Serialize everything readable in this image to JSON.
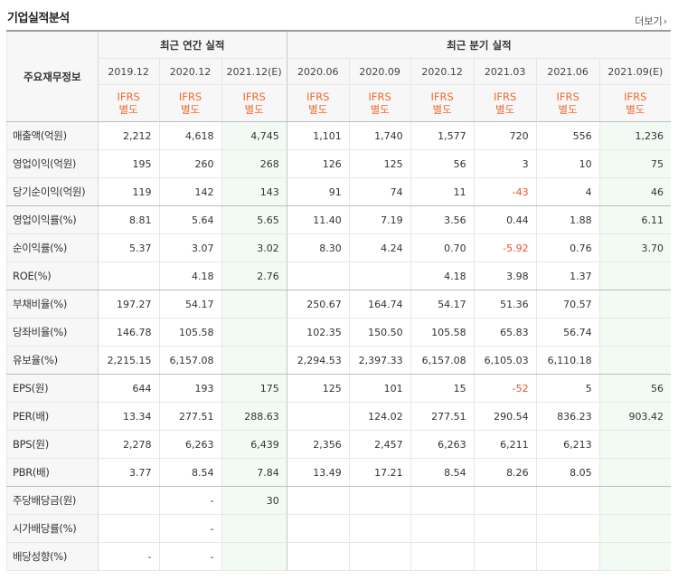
{
  "header": {
    "title": "기업실적분석",
    "more_label": "더보기",
    "more_icon": "chevron-right-icon"
  },
  "table": {
    "corner_label": "주요재무정보",
    "annual_group_label": "최근 연간 실적",
    "quarter_group_label": "최근 분기 실적",
    "periods": [
      "2019.12",
      "2020.12",
      "2021.12(E)",
      "2020.06",
      "2020.09",
      "2020.12",
      "2021.03",
      "2021.06",
      "2021.09(E)"
    ],
    "standard_line1": "IFRS",
    "standard_line2": "별도",
    "estimate_columns": [
      2,
      8
    ],
    "rows": [
      {
        "label": "매출액(억원)",
        "values": [
          "2,212",
          "4,618",
          "4,745",
          "1,101",
          "1,740",
          "1,577",
          "720",
          "556",
          "1,236"
        ]
      },
      {
        "label": "영업이익(억원)",
        "values": [
          "195",
          "260",
          "268",
          "126",
          "125",
          "56",
          "3",
          "10",
          "75"
        ]
      },
      {
        "label": "당기순이익(억원)",
        "values": [
          "119",
          "142",
          "143",
          "91",
          "74",
          "11",
          "-43",
          "4",
          "46"
        ]
      },
      {
        "label": "영업이익률(%)",
        "values": [
          "8.81",
          "5.64",
          "5.65",
          "11.40",
          "7.19",
          "3.56",
          "0.44",
          "1.88",
          "6.11"
        ]
      },
      {
        "label": "순이익률(%)",
        "values": [
          "5.37",
          "3.07",
          "3.02",
          "8.30",
          "4.24",
          "0.70",
          "-5.92",
          "0.76",
          "3.70"
        ]
      },
      {
        "label": "ROE(%)",
        "values": [
          "",
          "4.18",
          "2.76",
          "",
          "",
          "4.18",
          "3.98",
          "1.37",
          ""
        ]
      },
      {
        "label": "부채비율(%)",
        "values": [
          "197.27",
          "54.17",
          "",
          "250.67",
          "164.74",
          "54.17",
          "51.36",
          "70.57",
          ""
        ]
      },
      {
        "label": "당좌비율(%)",
        "values": [
          "146.78",
          "105.58",
          "",
          "102.35",
          "150.50",
          "105.58",
          "65.83",
          "56.74",
          ""
        ]
      },
      {
        "label": "유보율(%)",
        "values": [
          "2,215.15",
          "6,157.08",
          "",
          "2,294.53",
          "2,397.33",
          "6,157.08",
          "6,105.03",
          "6,110.18",
          ""
        ]
      },
      {
        "label": "EPS(원)",
        "values": [
          "644",
          "193",
          "175",
          "125",
          "101",
          "15",
          "-52",
          "5",
          "56"
        ]
      },
      {
        "label": "PER(배)",
        "values": [
          "13.34",
          "277.51",
          "288.63",
          "",
          "124.02",
          "277.51",
          "290.54",
          "836.23",
          "903.42"
        ]
      },
      {
        "label": "BPS(원)",
        "values": [
          "2,278",
          "6,263",
          "6,439",
          "2,356",
          "2,457",
          "6,263",
          "6,211",
          "6,213",
          ""
        ]
      },
      {
        "label": "PBR(배)",
        "values": [
          "3.77",
          "8.54",
          "7.84",
          "13.49",
          "17.21",
          "8.54",
          "8.26",
          "8.05",
          ""
        ]
      },
      {
        "label": "주당배당금(원)",
        "values": [
          "",
          "-",
          "30",
          "",
          "",
          "",
          "",
          "",
          ""
        ]
      },
      {
        "label": "시가배당률(%)",
        "values": [
          "",
          "-",
          "",
          "",
          "",
          "",
          "",
          "",
          ""
        ]
      },
      {
        "label": "배당성향(%)",
        "values": [
          "-",
          "-",
          "",
          "",
          "",
          "",
          "",
          "",
          ""
        ]
      }
    ],
    "group_end_rows": [
      2,
      5,
      8,
      12
    ],
    "colors": {
      "negative": "#e8532e",
      "ifrs": "#ee6a2e",
      "estimate_bg": "#f2fbf3",
      "header_bg": "#f7f7f7"
    }
  }
}
